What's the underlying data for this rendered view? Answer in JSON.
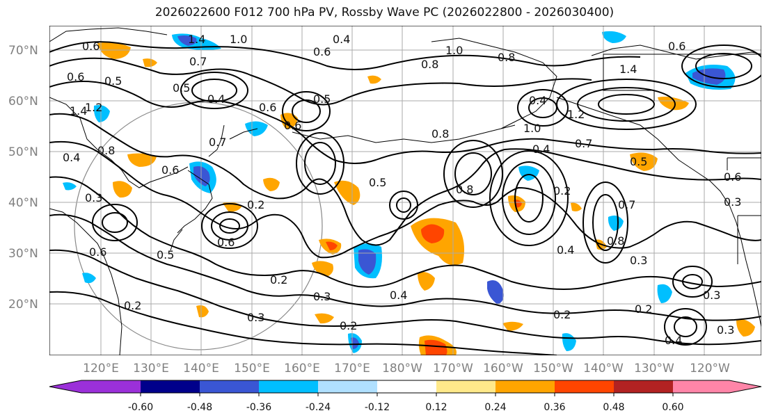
{
  "title": "2026022600 F012 700 hPa PV, Rossby Wave PC (2026022800 - 2026030400)",
  "lat_labels": [
    "70°N",
    "60°N",
    "50°N",
    "40°N",
    "30°N",
    "20°N"
  ],
  "lon_labels": [
    "120°E",
    "130°E",
    "140°E",
    "150°E",
    "160°E",
    "170°E",
    "180°W",
    "170°W",
    "160°W",
    "150°W",
    "140°W",
    "130°W",
    "120°W"
  ],
  "colorbar": {
    "colors": [
      "#9b30d9",
      "#00008b",
      "#3a56d4",
      "#00bfff",
      "#b0e0ff",
      "#ffffff",
      "#ffe98a",
      "#ffa500",
      "#ff4500",
      "#b22222",
      "#ff85a8"
    ],
    "tick_labels": [
      "-0.60",
      "-0.48",
      "-0.36",
      "-0.24",
      "-0.12",
      "0.12",
      "0.24",
      "0.36",
      "0.48",
      "0.60"
    ]
  },
  "contour_labels": [
    "0.6",
    "1.4",
    "1.0",
    "0.4",
    "0.6",
    "0.7",
    "0.6",
    "0.5",
    "0.8",
    "1.0",
    "0.8",
    "1.4",
    "0.6",
    "0.5",
    "0.4",
    "0.6",
    "0.5",
    "0.6",
    "1.2",
    "1.4",
    "0.4",
    "1.2",
    "0.8",
    "1.0",
    "0.4",
    "0.7",
    "0.8",
    "0.6",
    "0.7",
    "0.4",
    "0.5",
    "0.6",
    "0.3",
    "0.5",
    "0.2",
    "0.8",
    "0.2",
    "0.3",
    "0.6",
    "0.5",
    "0.6",
    "0.4",
    "0.7",
    "0.8",
    "0.3",
    "0.2",
    "0.3",
    "0.4",
    "0.2",
    "0.3",
    "0.2",
    "0.3",
    "0.2",
    "0.4",
    "0.2",
    "0.3"
  ]
}
